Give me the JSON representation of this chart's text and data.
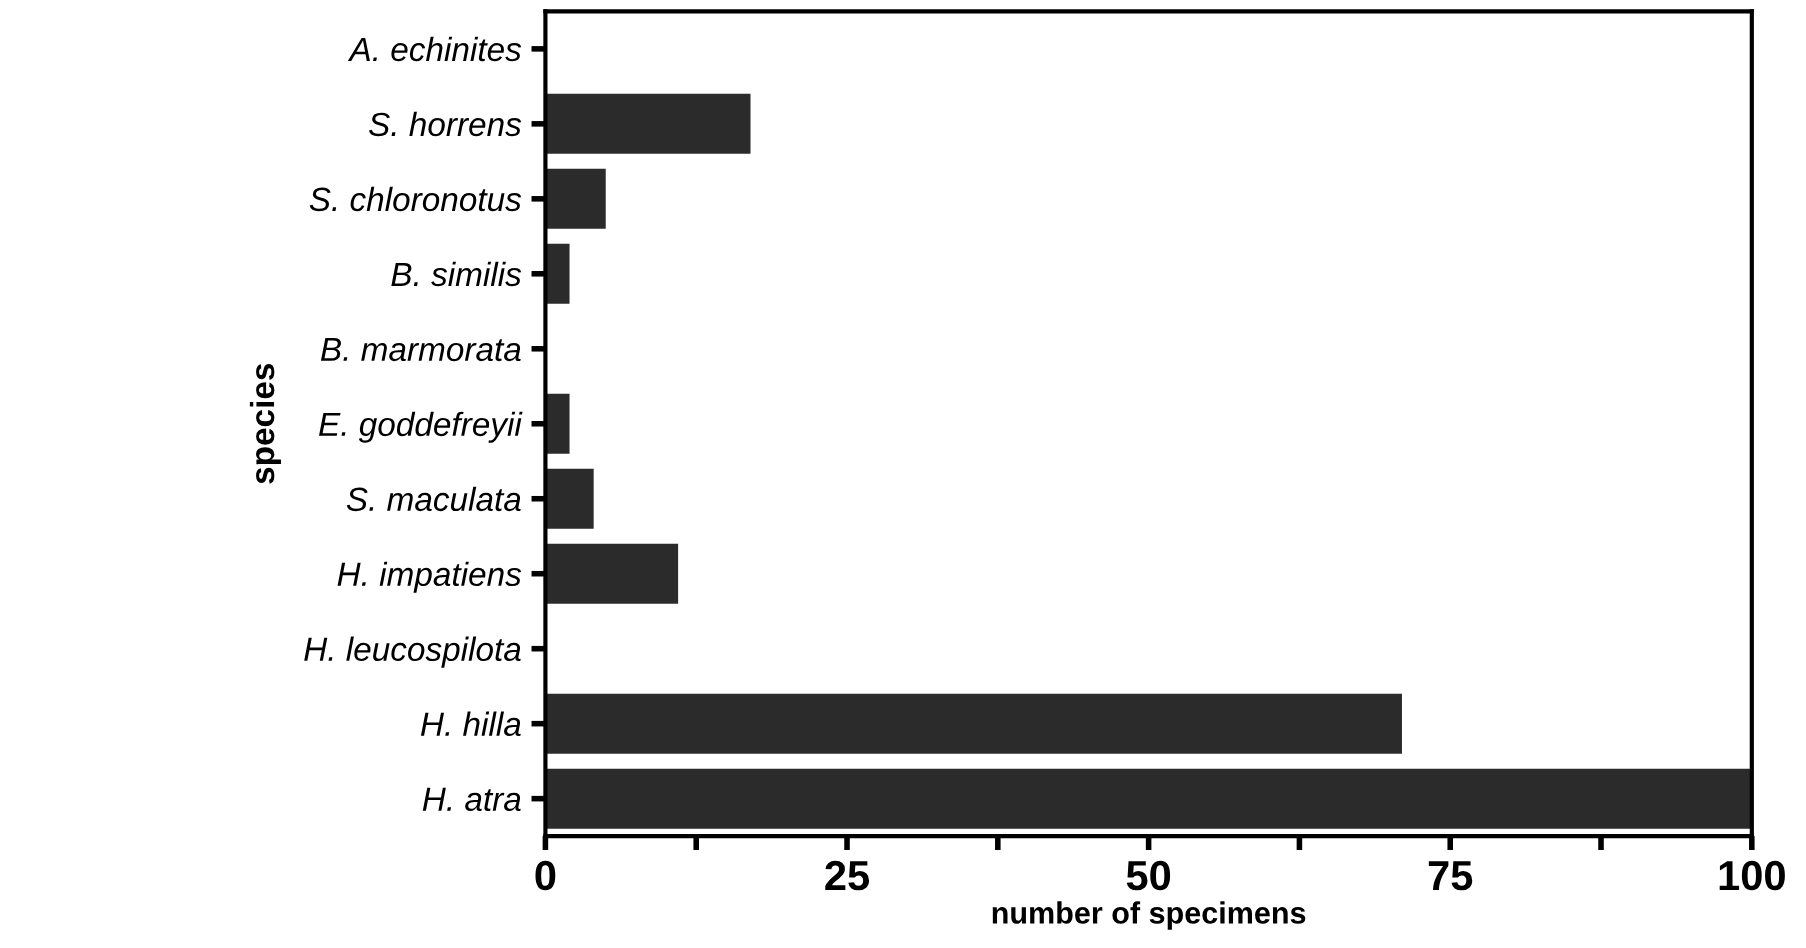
{
  "chart_data": {
    "type": "bar",
    "orientation": "horizontal",
    "xlabel": "number of specimens",
    "ylabel": "species",
    "categories": [
      "A. echinites",
      "S. horrens",
      "S. chloronotus",
      "B. similis",
      "B. marmorata",
      "E. goddefreyii",
      "S. maculata",
      "H. impatiens",
      "H. leucospilota",
      "H. hilla",
      "H. atra"
    ],
    "values": [
      0,
      17,
      5,
      2,
      0,
      2,
      4,
      11,
      0,
      71,
      100
    ],
    "color": "#2b2b2b",
    "xlim": [
      0,
      100
    ],
    "xticks": [
      0,
      {
        "value": 12.5,
        "label": null
      },
      25,
      {
        "value": 37.5,
        "label": null
      },
      50,
      {
        "value": 62.5,
        "label": null
      },
      75,
      {
        "value": 87.5,
        "label": null
      },
      100
    ],
    "grid": false
  }
}
